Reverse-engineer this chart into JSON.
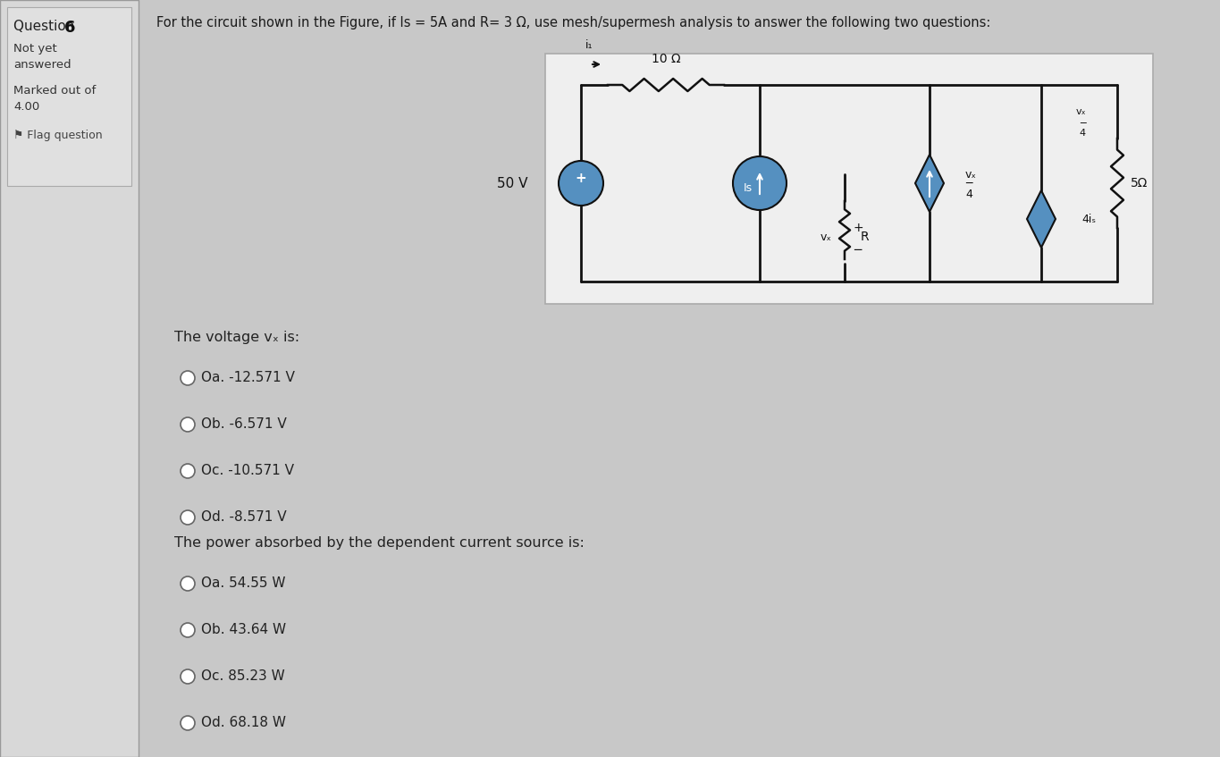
{
  "bg_outer": "#b8b8b8",
  "bg_main": "#c8c8c8",
  "left_panel_bg": "#d8d8d8",
  "left_panel_border": "#999999",
  "inner_box_bg": "#e0e0e0",
  "circuit_box_bg": "#efefef",
  "circuit_box_border": "#aaaaaa",
  "left_panel_title": "Question 6",
  "left_panel_line1": "Not yet",
  "left_panel_line2": "answered",
  "left_panel_line3": "Marked out of",
  "left_panel_line4": "4.00",
  "left_panel_line5": "⚑ Flag question",
  "header_text": "For the circuit shown in the Figure, if Is = 5A and R= 3 Ω, use mesh/supermesh analysis to answer the following two questions:",
  "q1_label": "The voltage vₓ is:",
  "q1_options": [
    {
      "label": "Oa.",
      "text": "-12.571 V"
    },
    {
      "label": "Ob.",
      "text": "-6.571 V"
    },
    {
      "label": "Oc.",
      "text": "-10.571 V"
    },
    {
      "label": "Od.",
      "text": "-8.571 V"
    }
  ],
  "q2_label": "The power absorbed by the dependent current source is:",
  "q2_options": [
    {
      "label": "Oa.",
      "text": "54.55 W"
    },
    {
      "label": "Ob.",
      "text": "43.64 W"
    },
    {
      "label": "Oc.",
      "text": "85.23 W"
    },
    {
      "label": "Od.",
      "text": "68.18 W"
    }
  ],
  "wire_color": "#111111",
  "source_fill": "#5590c0",
  "dep_source_fill": "#5590c0",
  "resistor_color": "#111111"
}
